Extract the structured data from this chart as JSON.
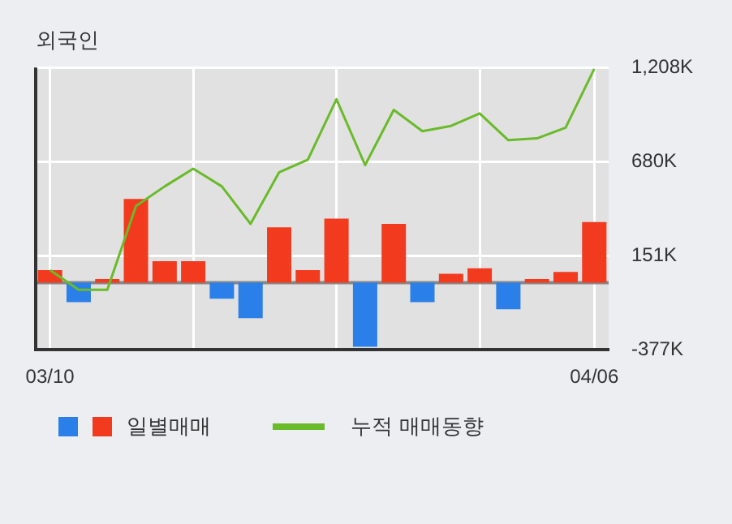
{
  "chart_data": {
    "type": "bar",
    "title": "외국인",
    "categories": [
      "03/10",
      null,
      null,
      null,
      null,
      null,
      null,
      null,
      null,
      null,
      null,
      null,
      null,
      null,
      null,
      null,
      null,
      null,
      null,
      "04/06"
    ],
    "series": [
      {
        "name": "일별매매",
        "colors": [
          "#f23a1e",
          "#2a7fe8",
          "#f23a1e",
          "#f23a1e",
          "#f23a1e",
          "#f23a1e",
          "#2a7fe8",
          "#2a7fe8",
          "#f23a1e",
          "#f23a1e",
          "#f23a1e",
          "#2a7fe8",
          "#f23a1e",
          "#2a7fe8",
          "#f23a1e",
          "#f23a1e",
          "#2a7fe8",
          "#f23a1e",
          "#f23a1e",
          "#f23a1e"
        ],
        "values": [
          70,
          -110,
          20,
          470,
          120,
          120,
          -90,
          -200,
          310,
          70,
          360,
          -360,
          330,
          -110,
          50,
          80,
          -150,
          20,
          60,
          340
        ]
      },
      {
        "name": "누적 매매동향",
        "type": "line",
        "color": "#6abb2a",
        "values": [
          70,
          -40,
          -40,
          430,
          540,
          640,
          540,
          330,
          620,
          690,
          1030,
          660,
          970,
          850,
          880,
          950,
          800,
          810,
          870,
          1200
        ]
      }
    ],
    "ylim": [
      -377,
      1208
    ],
    "yticks": [
      {
        "value": 1208,
        "label": "1,208K"
      },
      {
        "value": 680,
        "label": "680K"
      },
      {
        "value": 151,
        "label": "151K"
      },
      {
        "value": -377,
        "label": "-377K"
      }
    ],
    "grid": true,
    "legend": "bottom"
  }
}
